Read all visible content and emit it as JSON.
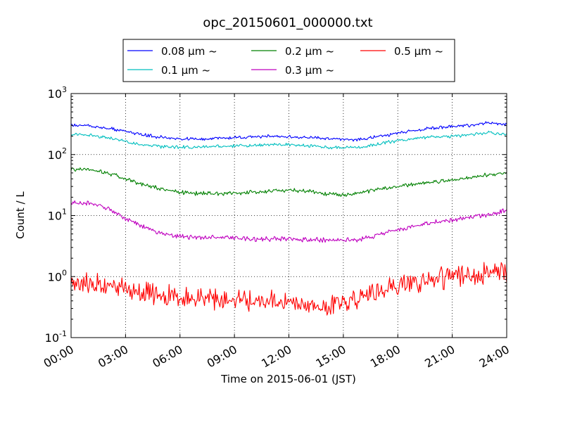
{
  "chart_data": {
    "type": "line",
    "title": "opc_20150601_000000.txt",
    "xlabel": "Time on 2015-06-01 (JST)",
    "ylabel": "Count / L",
    "y_scale": "log",
    "ylim": [
      0.1,
      1000
    ],
    "xlim": [
      "00:00",
      "24:00"
    ],
    "x_ticks": [
      "00:00",
      "03:00",
      "06:00",
      "09:00",
      "12:00",
      "15:00",
      "18:00",
      "21:00",
      "24:00"
    ],
    "y_ticks": [
      {
        "base": "10",
        "exp": "-1",
        "value": 0.1
      },
      {
        "base": "10",
        "exp": "0",
        "value": 1
      },
      {
        "base": "10",
        "exp": "1",
        "value": 10
      },
      {
        "base": "10",
        "exp": "2",
        "value": 100
      },
      {
        "base": "10",
        "exp": "3",
        "value": 1000
      }
    ],
    "grid": true,
    "legend_position": "top-center",
    "x": [
      "00:00",
      "01:00",
      "02:00",
      "03:00",
      "04:00",
      "05:00",
      "06:00",
      "07:00",
      "08:00",
      "09:00",
      "10:00",
      "11:00",
      "12:00",
      "13:00",
      "14:00",
      "15:00",
      "16:00",
      "17:00",
      "18:00",
      "19:00",
      "20:00",
      "21:00",
      "22:00",
      "23:00",
      "24:00"
    ],
    "series": [
      {
        "name": "0.08 μm ~",
        "color": "#0000ff",
        "noise": 0.02,
        "values": [
          310,
          295,
          270,
          240,
          210,
          190,
          180,
          178,
          182,
          188,
          195,
          200,
          195,
          190,
          185,
          175,
          178,
          200,
          225,
          250,
          270,
          285,
          300,
          330,
          310
        ]
      },
      {
        "name": "0.1 μm ~",
        "color": "#00bfbf",
        "noise": 0.02,
        "values": [
          220,
          210,
          190,
          165,
          145,
          135,
          133,
          132,
          135,
          138,
          140,
          145,
          145,
          140,
          132,
          128,
          132,
          150,
          170,
          185,
          195,
          200,
          210,
          230,
          210
        ]
      },
      {
        "name": "0.2 μm ~",
        "color": "#008000",
        "noise": 0.025,
        "values": [
          58,
          57,
          50,
          40,
          32,
          27,
          24,
          23,
          23,
          23,
          24,
          25,
          26,
          25,
          23,
          22,
          24,
          27,
          30,
          33,
          36,
          38,
          42,
          47,
          50
        ]
      },
      {
        "name": "0.3 μm ~",
        "color": "#bf00bf",
        "noise": 0.03,
        "values": [
          16,
          16,
          13,
          9,
          6.5,
          5.2,
          4.6,
          4.4,
          4.3,
          4.2,
          4.1,
          4.1,
          4.2,
          4.1,
          4.0,
          3.9,
          4.1,
          4.8,
          5.8,
          6.8,
          7.8,
          8.5,
          9.5,
          10.5,
          12
        ]
      },
      {
        "name": "0.5 μm ~",
        "color": "#ff0000",
        "noise": 0.13,
        "values": [
          0.75,
          0.75,
          0.72,
          0.65,
          0.55,
          0.5,
          0.45,
          0.43,
          0.43,
          0.43,
          0.42,
          0.38,
          0.36,
          0.33,
          0.3,
          0.38,
          0.48,
          0.58,
          0.7,
          0.82,
          0.9,
          0.98,
          1.05,
          1.1,
          1.2
        ]
      }
    ]
  }
}
